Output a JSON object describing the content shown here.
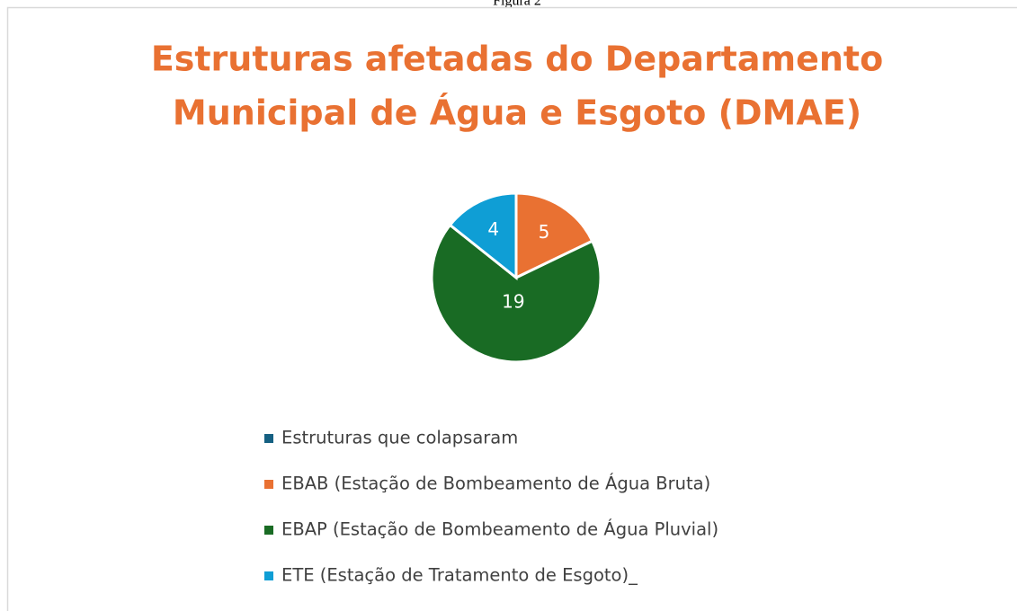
{
  "caption": "Figura 2",
  "chart_data": {
    "type": "pie",
    "title": [
      "Estruturas afetadas do Departamento",
      "Municipal de Água e Esgoto (DMAE)"
    ],
    "categories": [
      "Estruturas que colapsaram",
      "EBAB (Estação de Bombeamento de Água Bruta)",
      "EBAP (Estação de Bombeamento de Água Pluvial)",
      "ETE (Estação de Tratamento de Esgoto)_"
    ],
    "values": [
      null,
      5,
      19,
      4
    ],
    "colors": [
      "#156082",
      "#e97132",
      "#196b24",
      "#0f9ed5"
    ],
    "legend": "bottom"
  }
}
